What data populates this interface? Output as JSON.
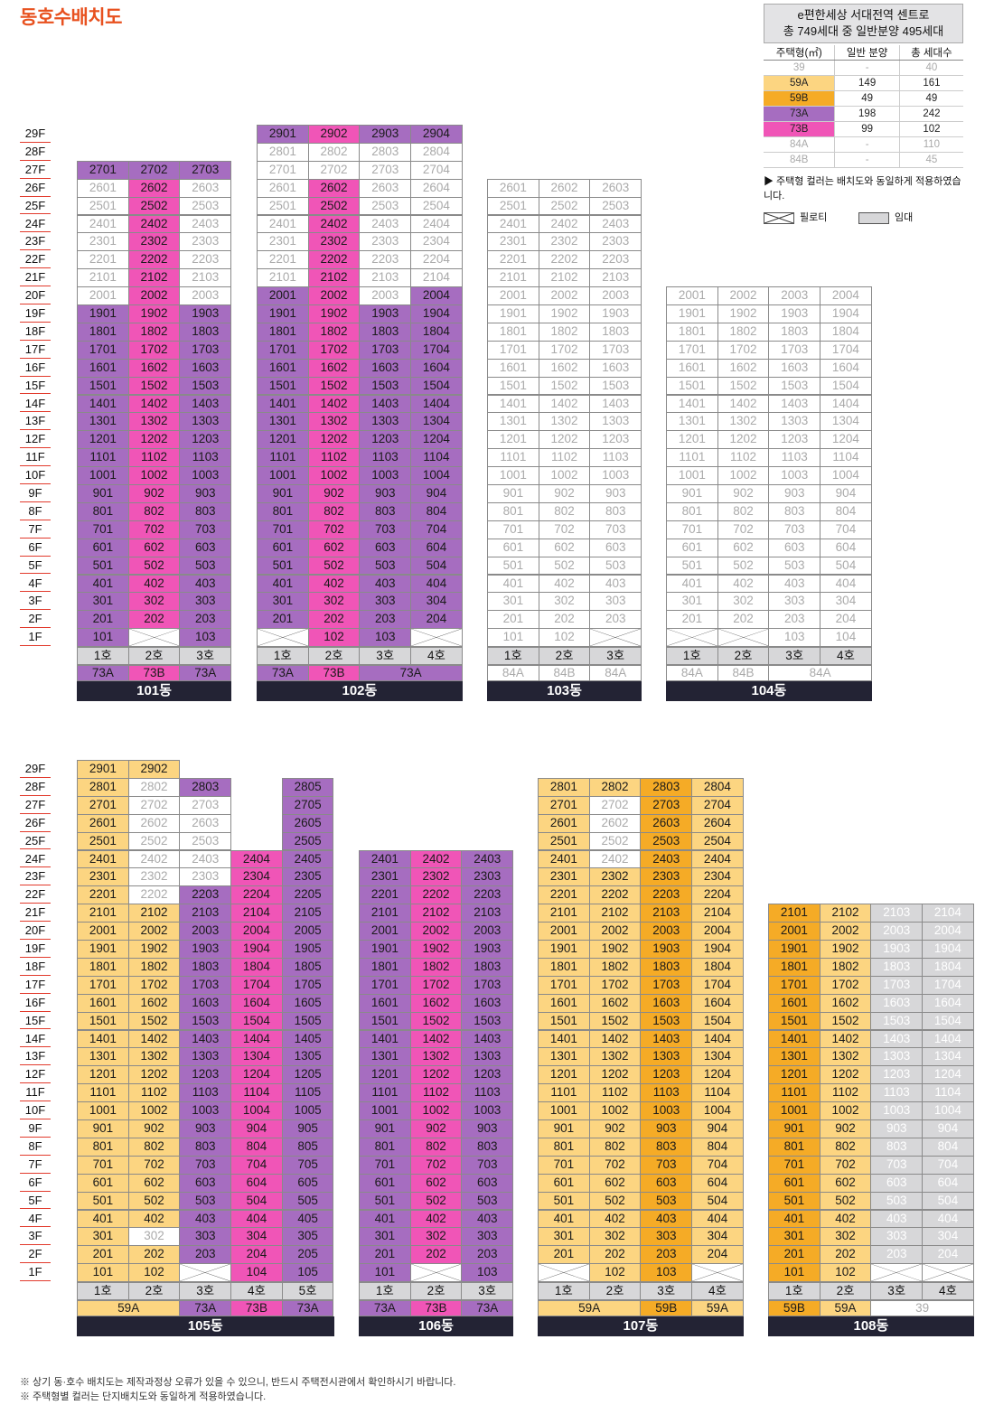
{
  "title": "동호수배치도",
  "legend": {
    "header_line1": "e편한세상 서대전역 센트로",
    "header_line2": "총 749세대 중 일반분양 495세대",
    "columns": [
      "주택형(㎡)",
      "일반 분양",
      "총 세대수"
    ],
    "rows": [
      {
        "type": "39",
        "general": "-",
        "total": "40",
        "color": "#ffffff",
        "dim": true
      },
      {
        "type": "59A",
        "general": "149",
        "total": "161",
        "color": "#fcd581",
        "dim": false
      },
      {
        "type": "59B",
        "general": "49",
        "total": "49",
        "color": "#f5ab26",
        "dim": false
      },
      {
        "type": "73A",
        "general": "198",
        "total": "242",
        "color": "#a66dc0",
        "dim": false
      },
      {
        "type": "73B",
        "general": "99",
        "total": "102",
        "color": "#f055b7",
        "dim": false
      },
      {
        "type": "84A",
        "general": "-",
        "total": "110",
        "color": "#ffffff",
        "dim": true
      },
      {
        "type": "84B",
        "general": "-",
        "total": "45",
        "color": "#ffffff",
        "dim": true
      }
    ],
    "note": "▶ 주택형 컬러는 배치도와 동일하게 적용하였습니다.",
    "pilotis_label": "필로티",
    "rental_label": "임대"
  },
  "footnotes": [
    "※ 상기 동·호수 배치도는 제작과정상 오류가 있을 수 있으니, 반드시 주택전시관에서 확인하시기 바랍니다.",
    "※ 주택형별 컬러는 단지배치도와 동일하게 적용하였습니다."
  ],
  "colors": {
    "59A": "#fcd581",
    "59B": "#f5ab26",
    "73A": "#a66dc0",
    "73B": "#f055b7",
    "rental": "#d7d7d9",
    "building_label_bg": "#232334"
  },
  "buildings": [
    {
      "name": "101동",
      "row": 0,
      "lines": [
        {
          "ho": "1호",
          "type": "73A",
          "top": 27,
          "overrides": {
            "1": "73A",
            "20": "39",
            "21": "39",
            "22": "39",
            "23": "39",
            "24": "39",
            "25": "39",
            "26": "39"
          }
        },
        {
          "ho": "2호",
          "type": "73B",
          "top": 27,
          "overrides": {
            "1": "P",
            "27": "73A"
          }
        },
        {
          "ho": "3호",
          "type": "73A",
          "top": 27,
          "overrides": {
            "1": "73A",
            "20": "39",
            "21": "39",
            "22": "39",
            "23": "39",
            "24": "39",
            "25": "39",
            "26": "39"
          }
        }
      ],
      "typerow": [
        {
          "label": "73A",
          "span": 1,
          "type": "73A"
        },
        {
          "label": "73B",
          "span": 1,
          "type": "73B"
        },
        {
          "label": "73A",
          "span": 1,
          "type": "73A"
        }
      ]
    },
    {
      "name": "102동",
      "row": 0,
      "lines": [
        {
          "ho": "1호",
          "type": "73A",
          "top": 29,
          "overrides": {
            "1": "P",
            "21": "39",
            "22": "39",
            "23": "39",
            "24": "39",
            "25": "39",
            "26": "39",
            "27": "39",
            "28": "39"
          }
        },
        {
          "ho": "2호",
          "type": "73B",
          "top": 29,
          "overrides": {
            "1": "73B",
            "27": "39",
            "28": "39"
          }
        },
        {
          "ho": "3호",
          "type": "73A",
          "top": 29,
          "overrides": {
            "1": "73A",
            "20": "39",
            "21": "39",
            "22": "39",
            "23": "39",
            "24": "39",
            "25": "39",
            "26": "39",
            "27": "39",
            "28": "39"
          }
        },
        {
          "ho": "4호",
          "type": "73A",
          "top": 29,
          "overrides": {
            "1": "P",
            "21": "39",
            "22": "39",
            "23": "39",
            "24": "39",
            "25": "39",
            "26": "39",
            "27": "39",
            "28": "39"
          }
        }
      ],
      "typerow": [
        {
          "label": "73A",
          "span": 1,
          "type": "73A"
        },
        {
          "label": "73B",
          "span": 1,
          "type": "73B"
        },
        {
          "label": "73A",
          "span": 2,
          "type": "73A"
        }
      ]
    },
    {
      "name": "103동",
      "row": 0,
      "lines": [
        {
          "ho": "1호",
          "type": "84A",
          "top": 26,
          "overrides": {}
        },
        {
          "ho": "2호",
          "type": "84B",
          "top": 26,
          "overrides": {}
        },
        {
          "ho": "3호",
          "type": "84A",
          "top": 26,
          "overrides": {
            "1": "P"
          }
        }
      ],
      "typerow": [
        {
          "label": "84A",
          "span": 1,
          "type": "84A"
        },
        {
          "label": "84B",
          "span": 1,
          "type": "84B"
        },
        {
          "label": "84A",
          "span": 1,
          "type": "84A"
        }
      ]
    },
    {
      "name": "104동",
      "row": 0,
      "lines": [
        {
          "ho": "1호",
          "type": "84A",
          "top": 20,
          "overrides": {
            "1": "P"
          }
        },
        {
          "ho": "2호",
          "type": "84B",
          "top": 20,
          "overrides": {
            "1": "P"
          }
        },
        {
          "ho": "3호",
          "type": "84A",
          "top": 20,
          "overrides": {}
        },
        {
          "ho": "4호",
          "type": "84A",
          "top": 20,
          "overrides": {}
        }
      ],
      "typerow": [
        {
          "label": "84A",
          "span": 1,
          "type": "84A"
        },
        {
          "label": "84B",
          "span": 1,
          "type": "84B"
        },
        {
          "label": "84A",
          "span": 2,
          "type": "84A"
        }
      ]
    },
    {
      "name": "105동",
      "row": 1,
      "lines": [
        {
          "ho": "1호",
          "type": "59A",
          "top": 29,
          "overrides": {}
        },
        {
          "ho": "2호",
          "type": "59A",
          "top": 29,
          "overrides": {
            "3": "39",
            "22": "39",
            "23": "39",
            "24": "39",
            "25": "39",
            "26": "39",
            "27": "39",
            "28": "39"
          }
        },
        {
          "ho": "3호",
          "type": "73A",
          "top": 28,
          "overrides": {
            "1": "P",
            "23": "39",
            "24": "39",
            "25": "39",
            "26": "39",
            "27": "39"
          }
        },
        {
          "ho": "4호",
          "type": "73B",
          "top": 24,
          "overrides": {}
        },
        {
          "ho": "5호",
          "type": "73A",
          "top": 28,
          "overrides": {}
        }
      ],
      "typerow": [
        {
          "label": "59A",
          "span": 2,
          "type": "59A"
        },
        {
          "label": "73A",
          "span": 1,
          "type": "73A"
        },
        {
          "label": "73B",
          "span": 1,
          "type": "73B"
        },
        {
          "label": "73A",
          "span": 1,
          "type": "73A"
        }
      ]
    },
    {
      "name": "106동",
      "row": 1,
      "lines": [
        {
          "ho": "1호",
          "type": "73A",
          "top": 24,
          "overrides": {}
        },
        {
          "ho": "2호",
          "type": "73B",
          "top": 24,
          "overrides": {
            "1": "P"
          }
        },
        {
          "ho": "3호",
          "type": "73A",
          "top": 24,
          "overrides": {}
        }
      ],
      "typerow": [
        {
          "label": "73A",
          "span": 1,
          "type": "73A"
        },
        {
          "label": "73B",
          "span": 1,
          "type": "73B"
        },
        {
          "label": "73A",
          "span": 1,
          "type": "73A"
        }
      ]
    },
    {
      "name": "107동",
      "row": 1,
      "lines": [
        {
          "ho": "1호",
          "type": "59A",
          "top": 28,
          "overrides": {
            "1": "P"
          }
        },
        {
          "ho": "2호",
          "type": "59A",
          "top": 28,
          "overrides": {
            "24": "39",
            "25": "39",
            "26": "39",
            "27": "39"
          }
        },
        {
          "ho": "3호",
          "type": "59B",
          "top": 28,
          "overrides": {}
        },
        {
          "ho": "4호",
          "type": "59A",
          "top": 28,
          "overrides": {
            "1": "P"
          }
        }
      ],
      "typerow": [
        {
          "label": "59A",
          "span": 2,
          "type": "59A"
        },
        {
          "label": "59B",
          "span": 1,
          "type": "59B"
        },
        {
          "label": "59A",
          "span": 1,
          "type": "59A"
        }
      ]
    },
    {
      "name": "108동",
      "row": 1,
      "lines": [
        {
          "ho": "1호",
          "type": "59B",
          "top": 21,
          "overrides": {}
        },
        {
          "ho": "2호",
          "type": "59A",
          "top": 21,
          "overrides": {}
        },
        {
          "ho": "3호",
          "type": "gray",
          "top": 21,
          "overrides": {
            "1": "P"
          }
        },
        {
          "ho": "4호",
          "type": "gray",
          "top": 21,
          "overrides": {
            "1": "P"
          }
        }
      ],
      "typerow": [
        {
          "label": "59B",
          "span": 1,
          "type": "59B"
        },
        {
          "label": "59A",
          "span": 1,
          "type": "59A"
        },
        {
          "label": "39",
          "span": 2,
          "type": "39"
        }
      ]
    }
  ]
}
